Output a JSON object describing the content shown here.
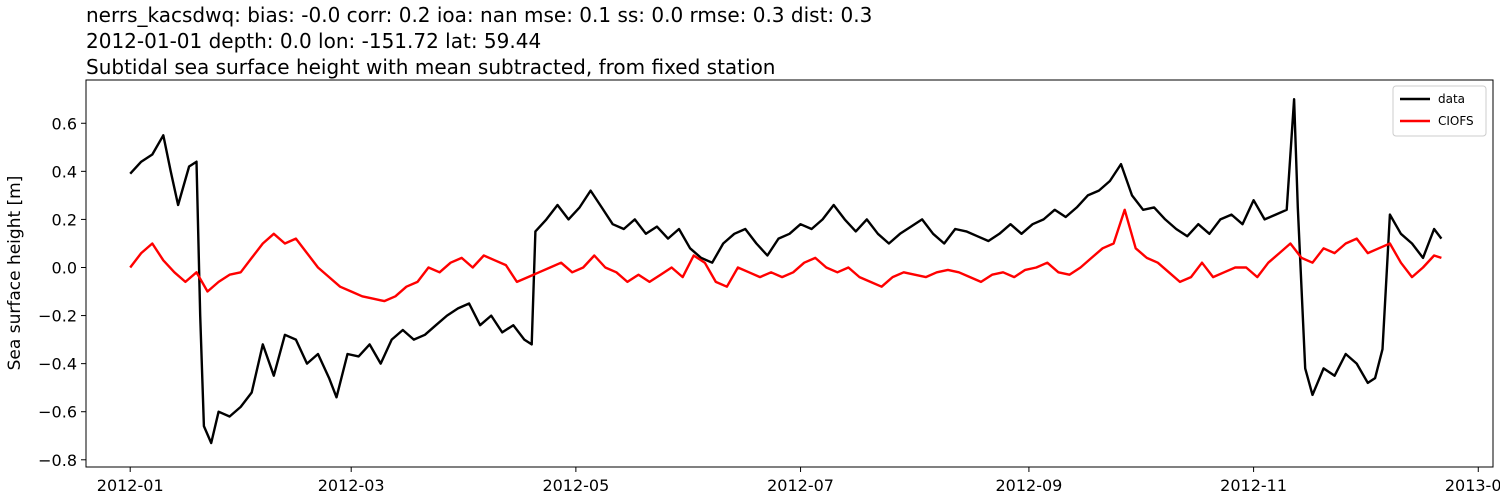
{
  "chart_data": {
    "type": "line",
    "title_lines": [
      "nerrs_kacsdwq: bias: -0.0  corr: 0.2  ioa: nan  mse: 0.1  ss: 0.0  rmse: 0.3  dist: 0.3",
      "2012-01-01 depth: 0.0 lon: -151.72 lat: 59.44",
      "Subtidal sea surface height with mean subtracted, from fixed station"
    ],
    "xlabel": "",
    "ylabel": "Sea surface height [m]",
    "xlim": [
      "2011-12-20",
      "2013-01-05"
    ],
    "ylim": [
      -0.83,
      0.78
    ],
    "x_ticks": [
      "2012-01",
      "2012-03",
      "2012-05",
      "2012-07",
      "2012-09",
      "2012-11",
      "2013-01"
    ],
    "y_ticks": [
      -0.8,
      -0.6,
      -0.4,
      -0.2,
      0.0,
      0.2,
      0.4,
      0.6
    ],
    "y_tick_labels": [
      "−0.8",
      "−0.6",
      "−0.4",
      "−0.2",
      "0.0",
      "0.2",
      "0.4",
      "0.6"
    ],
    "legend_position": "top-right",
    "grid": false,
    "series": [
      {
        "name": "data",
        "color": "#000000",
        "points": [
          [
            "2012-01-01",
            0.39
          ],
          [
            "2012-01-04",
            0.44
          ],
          [
            "2012-01-07",
            0.47
          ],
          [
            "2012-01-10",
            0.55
          ],
          [
            "2012-01-12",
            0.4
          ],
          [
            "2012-01-14",
            0.26
          ],
          [
            "2012-01-17",
            0.42
          ],
          [
            "2012-01-19",
            0.44
          ],
          [
            "2012-01-20",
            -0.2
          ],
          [
            "2012-01-21",
            -0.66
          ],
          [
            "2012-01-23",
            -0.73
          ],
          [
            "2012-01-25",
            -0.6
          ],
          [
            "2012-01-28",
            -0.62
          ],
          [
            "2012-01-31",
            -0.58
          ],
          [
            "2012-02-03",
            -0.52
          ],
          [
            "2012-02-06",
            -0.32
          ],
          [
            "2012-02-09",
            -0.45
          ],
          [
            "2012-02-12",
            -0.28
          ],
          [
            "2012-02-15",
            -0.3
          ],
          [
            "2012-02-18",
            -0.4
          ],
          [
            "2012-02-21",
            -0.36
          ],
          [
            "2012-02-24",
            -0.46
          ],
          [
            "2012-02-26",
            -0.54
          ],
          [
            "2012-02-29",
            -0.36
          ],
          [
            "2012-03-03",
            -0.37
          ],
          [
            "2012-03-06",
            -0.32
          ],
          [
            "2012-03-09",
            -0.4
          ],
          [
            "2012-03-12",
            -0.3
          ],
          [
            "2012-03-15",
            -0.26
          ],
          [
            "2012-03-18",
            -0.3
          ],
          [
            "2012-03-21",
            -0.28
          ],
          [
            "2012-03-24",
            -0.24
          ],
          [
            "2012-03-27",
            -0.2
          ],
          [
            "2012-03-30",
            -0.17
          ],
          [
            "2012-04-02",
            -0.15
          ],
          [
            "2012-04-05",
            -0.24
          ],
          [
            "2012-04-08",
            -0.2
          ],
          [
            "2012-04-11",
            -0.27
          ],
          [
            "2012-04-14",
            -0.24
          ],
          [
            "2012-04-17",
            -0.3
          ],
          [
            "2012-04-19",
            -0.32
          ],
          [
            "2012-04-20",
            0.15
          ],
          [
            "2012-04-23",
            0.2
          ],
          [
            "2012-04-26",
            0.26
          ],
          [
            "2012-04-29",
            0.2
          ],
          [
            "2012-05-02",
            0.25
          ],
          [
            "2012-05-05",
            0.32
          ],
          [
            "2012-05-08",
            0.25
          ],
          [
            "2012-05-11",
            0.18
          ],
          [
            "2012-05-14",
            0.16
          ],
          [
            "2012-05-17",
            0.2
          ],
          [
            "2012-05-20",
            0.14
          ],
          [
            "2012-05-23",
            0.17
          ],
          [
            "2012-05-26",
            0.12
          ],
          [
            "2012-05-29",
            0.16
          ],
          [
            "2012-06-01",
            0.08
          ],
          [
            "2012-06-04",
            0.04
          ],
          [
            "2012-06-07",
            0.02
          ],
          [
            "2012-06-10",
            0.1
          ],
          [
            "2012-06-13",
            0.14
          ],
          [
            "2012-06-16",
            0.16
          ],
          [
            "2012-06-19",
            0.1
          ],
          [
            "2012-06-22",
            0.05
          ],
          [
            "2012-06-25",
            0.12
          ],
          [
            "2012-06-28",
            0.14
          ],
          [
            "2012-07-01",
            0.18
          ],
          [
            "2012-07-04",
            0.16
          ],
          [
            "2012-07-07",
            0.2
          ],
          [
            "2012-07-10",
            0.26
          ],
          [
            "2012-07-13",
            0.2
          ],
          [
            "2012-07-16",
            0.15
          ],
          [
            "2012-07-19",
            0.2
          ],
          [
            "2012-07-22",
            0.14
          ],
          [
            "2012-07-25",
            0.1
          ],
          [
            "2012-07-28",
            0.14
          ],
          [
            "2012-07-31",
            0.17
          ],
          [
            "2012-08-03",
            0.2
          ],
          [
            "2012-08-06",
            0.14
          ],
          [
            "2012-08-09",
            0.1
          ],
          [
            "2012-08-12",
            0.16
          ],
          [
            "2012-08-15",
            0.15
          ],
          [
            "2012-08-18",
            0.13
          ],
          [
            "2012-08-21",
            0.11
          ],
          [
            "2012-08-24",
            0.14
          ],
          [
            "2012-08-27",
            0.18
          ],
          [
            "2012-08-30",
            0.14
          ],
          [
            "2012-09-02",
            0.18
          ],
          [
            "2012-09-05",
            0.2
          ],
          [
            "2012-09-08",
            0.24
          ],
          [
            "2012-09-11",
            0.21
          ],
          [
            "2012-09-14",
            0.25
          ],
          [
            "2012-09-17",
            0.3
          ],
          [
            "2012-09-20",
            0.32
          ],
          [
            "2012-09-23",
            0.36
          ],
          [
            "2012-09-26",
            0.43
          ],
          [
            "2012-09-29",
            0.3
          ],
          [
            "2012-10-02",
            0.24
          ],
          [
            "2012-10-05",
            0.25
          ],
          [
            "2012-10-08",
            0.2
          ],
          [
            "2012-10-11",
            0.16
          ],
          [
            "2012-10-14",
            0.13
          ],
          [
            "2012-10-17",
            0.18
          ],
          [
            "2012-10-20",
            0.14
          ],
          [
            "2012-10-23",
            0.2
          ],
          [
            "2012-10-26",
            0.22
          ],
          [
            "2012-10-29",
            0.18
          ],
          [
            "2012-11-01",
            0.28
          ],
          [
            "2012-11-04",
            0.2
          ],
          [
            "2012-11-07",
            0.22
          ],
          [
            "2012-11-10",
            0.24
          ],
          [
            "2012-11-12",
            0.7
          ],
          [
            "2012-11-13",
            0.25
          ],
          [
            "2012-11-15",
            -0.42
          ],
          [
            "2012-11-17",
            -0.53
          ],
          [
            "2012-11-20",
            -0.42
          ],
          [
            "2012-11-23",
            -0.45
          ],
          [
            "2012-11-26",
            -0.36
          ],
          [
            "2012-11-29",
            -0.4
          ],
          [
            "2012-12-02",
            -0.48
          ],
          [
            "2012-12-04",
            -0.46
          ],
          [
            "2012-12-06",
            -0.34
          ],
          [
            "2012-12-08",
            0.22
          ],
          [
            "2012-12-11",
            0.14
          ],
          [
            "2012-12-14",
            0.1
          ],
          [
            "2012-12-17",
            0.04
          ],
          [
            "2012-12-20",
            0.16
          ],
          [
            "2012-12-22",
            0.12
          ]
        ]
      },
      {
        "name": "CIOFS",
        "color": "#ff0000",
        "points": [
          [
            "2012-01-01",
            0.0
          ],
          [
            "2012-01-04",
            0.06
          ],
          [
            "2012-01-07",
            0.1
          ],
          [
            "2012-01-10",
            0.03
          ],
          [
            "2012-01-13",
            -0.02
          ],
          [
            "2012-01-16",
            -0.06
          ],
          [
            "2012-01-19",
            -0.02
          ],
          [
            "2012-01-22",
            -0.1
          ],
          [
            "2012-01-25",
            -0.06
          ],
          [
            "2012-01-28",
            -0.03
          ],
          [
            "2012-01-31",
            -0.02
          ],
          [
            "2012-02-03",
            0.04
          ],
          [
            "2012-02-06",
            0.1
          ],
          [
            "2012-02-09",
            0.14
          ],
          [
            "2012-02-12",
            0.1
          ],
          [
            "2012-02-15",
            0.12
          ],
          [
            "2012-02-18",
            0.06
          ],
          [
            "2012-02-21",
            0.0
          ],
          [
            "2012-02-24",
            -0.04
          ],
          [
            "2012-02-27",
            -0.08
          ],
          [
            "2012-03-01",
            -0.1
          ],
          [
            "2012-03-04",
            -0.12
          ],
          [
            "2012-03-07",
            -0.13
          ],
          [
            "2012-03-10",
            -0.14
          ],
          [
            "2012-03-13",
            -0.12
          ],
          [
            "2012-03-16",
            -0.08
          ],
          [
            "2012-03-19",
            -0.06
          ],
          [
            "2012-03-22",
            0.0
          ],
          [
            "2012-03-25",
            -0.02
          ],
          [
            "2012-03-28",
            0.02
          ],
          [
            "2012-03-31",
            0.04
          ],
          [
            "2012-04-03",
            0.0
          ],
          [
            "2012-04-06",
            0.05
          ],
          [
            "2012-04-09",
            0.03
          ],
          [
            "2012-04-12",
            0.01
          ],
          [
            "2012-04-15",
            -0.06
          ],
          [
            "2012-04-18",
            -0.04
          ],
          [
            "2012-04-21",
            -0.02
          ],
          [
            "2012-04-24",
            0.0
          ],
          [
            "2012-04-27",
            0.02
          ],
          [
            "2012-04-30",
            -0.02
          ],
          [
            "2012-05-03",
            0.0
          ],
          [
            "2012-05-06",
            0.05
          ],
          [
            "2012-05-09",
            0.0
          ],
          [
            "2012-05-12",
            -0.02
          ],
          [
            "2012-05-15",
            -0.06
          ],
          [
            "2012-05-18",
            -0.03
          ],
          [
            "2012-05-21",
            -0.06
          ],
          [
            "2012-05-24",
            -0.03
          ],
          [
            "2012-05-27",
            0.0
          ],
          [
            "2012-05-30",
            -0.04
          ],
          [
            "2012-06-02",
            0.05
          ],
          [
            "2012-06-05",
            0.02
          ],
          [
            "2012-06-08",
            -0.06
          ],
          [
            "2012-06-11",
            -0.08
          ],
          [
            "2012-06-14",
            0.0
          ],
          [
            "2012-06-17",
            -0.02
          ],
          [
            "2012-06-20",
            -0.04
          ],
          [
            "2012-06-23",
            -0.02
          ],
          [
            "2012-06-26",
            -0.04
          ],
          [
            "2012-06-29",
            -0.02
          ],
          [
            "2012-07-02",
            0.02
          ],
          [
            "2012-07-05",
            0.04
          ],
          [
            "2012-07-08",
            0.0
          ],
          [
            "2012-07-11",
            -0.02
          ],
          [
            "2012-07-14",
            0.0
          ],
          [
            "2012-07-17",
            -0.04
          ],
          [
            "2012-07-20",
            -0.06
          ],
          [
            "2012-07-23",
            -0.08
          ],
          [
            "2012-07-26",
            -0.04
          ],
          [
            "2012-07-29",
            -0.02
          ],
          [
            "2012-08-01",
            -0.03
          ],
          [
            "2012-08-04",
            -0.04
          ],
          [
            "2012-08-07",
            -0.02
          ],
          [
            "2012-08-10",
            -0.01
          ],
          [
            "2012-08-13",
            -0.02
          ],
          [
            "2012-08-16",
            -0.04
          ],
          [
            "2012-08-19",
            -0.06
          ],
          [
            "2012-08-22",
            -0.03
          ],
          [
            "2012-08-25",
            -0.02
          ],
          [
            "2012-08-28",
            -0.04
          ],
          [
            "2012-08-31",
            -0.01
          ],
          [
            "2012-09-03",
            0.0
          ],
          [
            "2012-09-06",
            0.02
          ],
          [
            "2012-09-09",
            -0.02
          ],
          [
            "2012-09-12",
            -0.03
          ],
          [
            "2012-09-15",
            0.0
          ],
          [
            "2012-09-18",
            0.04
          ],
          [
            "2012-09-21",
            0.08
          ],
          [
            "2012-09-24",
            0.1
          ],
          [
            "2012-09-27",
            0.24
          ],
          [
            "2012-09-30",
            0.08
          ],
          [
            "2012-10-03",
            0.04
          ],
          [
            "2012-10-06",
            0.02
          ],
          [
            "2012-10-09",
            -0.02
          ],
          [
            "2012-10-12",
            -0.06
          ],
          [
            "2012-10-15",
            -0.04
          ],
          [
            "2012-10-18",
            0.02
          ],
          [
            "2012-10-21",
            -0.04
          ],
          [
            "2012-10-24",
            -0.02
          ],
          [
            "2012-10-27",
            0.0
          ],
          [
            "2012-10-30",
            0.0
          ],
          [
            "2012-11-02",
            -0.04
          ],
          [
            "2012-11-05",
            0.02
          ],
          [
            "2012-11-08",
            0.06
          ],
          [
            "2012-11-11",
            0.1
          ],
          [
            "2012-11-14",
            0.04
          ],
          [
            "2012-11-17",
            0.02
          ],
          [
            "2012-11-20",
            0.08
          ],
          [
            "2012-11-23",
            0.06
          ],
          [
            "2012-11-26",
            0.1
          ],
          [
            "2012-11-29",
            0.12
          ],
          [
            "2012-12-02",
            0.06
          ],
          [
            "2012-12-05",
            0.08
          ],
          [
            "2012-12-08",
            0.1
          ],
          [
            "2012-12-11",
            0.02
          ],
          [
            "2012-12-14",
            -0.04
          ],
          [
            "2012-12-17",
            0.0
          ],
          [
            "2012-12-20",
            0.05
          ],
          [
            "2012-12-22",
            0.04
          ]
        ]
      }
    ]
  }
}
